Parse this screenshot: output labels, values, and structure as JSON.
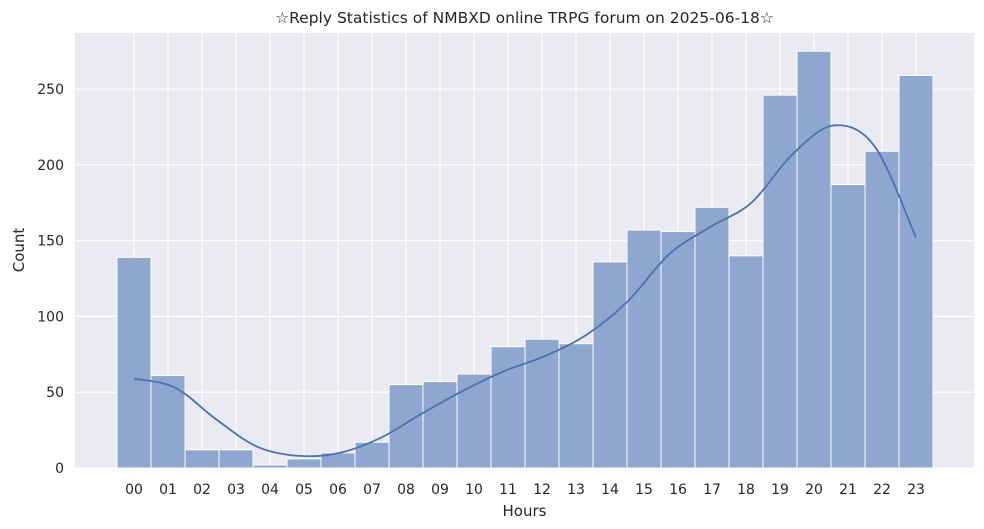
{
  "chart_data": {
    "type": "bar",
    "title": "☆Reply Statistics of NMBXD online TRPG forum on 2025-06-18☆",
    "xlabel": "Hours",
    "ylabel": "Count",
    "categories": [
      "00",
      "01",
      "02",
      "03",
      "04",
      "05",
      "06",
      "07",
      "08",
      "09",
      "10",
      "11",
      "12",
      "13",
      "14",
      "15",
      "16",
      "17",
      "18",
      "19",
      "20",
      "21",
      "22",
      "23"
    ],
    "values": [
      139,
      61,
      12,
      12,
      2,
      6,
      10,
      17,
      55,
      57,
      62,
      80,
      85,
      82,
      136,
      157,
      156,
      172,
      140,
      246,
      275,
      187,
      209,
      259
    ],
    "kde": [
      59,
      53,
      32,
      14,
      8,
      10,
      20,
      36,
      51,
      64,
      74,
      88,
      110,
      141,
      159,
      175,
      207,
      226,
      212,
      152
    ],
    "ylim": [
      0,
      287
    ],
    "yticks": [
      0,
      50,
      100,
      150,
      200,
      250
    ],
    "grid": true,
    "colors": {
      "bar": "#8fa6cf",
      "bar_edge": "#ffffff",
      "kde": "#4c72b0",
      "plot_bg": "#eaeaf2",
      "grid": "#ffffff"
    }
  }
}
